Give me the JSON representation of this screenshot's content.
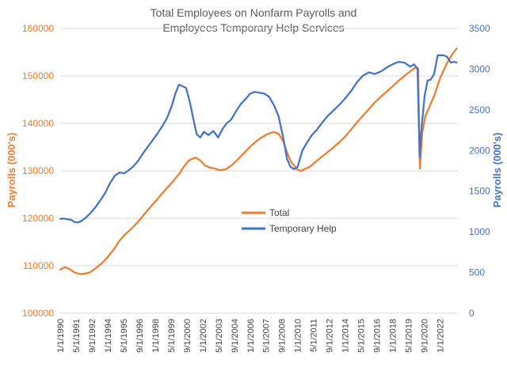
{
  "chart_data": {
    "type": "line",
    "title": "Total Employees on Nonfarm Payrolls and",
    "subtitle": "Employees Temporary  Help Services",
    "ylabel": "Payrolls (000's)",
    "y2label": "Payrolls (000's)",
    "ylim": [
      100000,
      160000
    ],
    "y2lim": [
      0,
      3500
    ],
    "yticks": [
      "100000",
      "110000",
      "120000",
      "130000",
      "140000",
      "150000",
      "160000"
    ],
    "y2ticks": [
      "0",
      "500",
      "1000",
      "1500",
      "2000",
      "2500",
      "3000",
      "3500"
    ],
    "xlim": [
      1990.0,
      2023.5
    ],
    "xticks": [
      {
        "label": "1/1/1990",
        "x": 1990.0
      },
      {
        "label": "5/1/1991",
        "x": 1991.333
      },
      {
        "label": "9/1/1992",
        "x": 1992.667
      },
      {
        "label": "1/1/1994",
        "x": 1994.0
      },
      {
        "label": "5/1/1995",
        "x": 1995.333
      },
      {
        "label": "9/1/1996",
        "x": 1996.667
      },
      {
        "label": "1/1/1998",
        "x": 1998.0
      },
      {
        "label": "5/1/1999",
        "x": 1999.333
      },
      {
        "label": "9/1/2000",
        "x": 2000.667
      },
      {
        "label": "1/1/2002",
        "x": 2002.0
      },
      {
        "label": "5/1/2003",
        "x": 2003.333
      },
      {
        "label": "9/1/2004",
        "x": 2004.667
      },
      {
        "label": "1/1/2006",
        "x": 2006.0
      },
      {
        "label": "5/1/2007",
        "x": 2007.333
      },
      {
        "label": "9/1/2008",
        "x": 2008.667
      },
      {
        "label": "1/1/2010",
        "x": 2010.0
      },
      {
        "label": "5/1/2011",
        "x": 2011.333
      },
      {
        "label": "9/1/2012",
        "x": 2012.667
      },
      {
        "label": "1/1/2014",
        "x": 2014.0
      },
      {
        "label": "5/1/2015",
        "x": 2015.333
      },
      {
        "label": "9/1/2016",
        "x": 2016.667
      },
      {
        "label": "1/1/2018",
        "x": 2018.0
      },
      {
        "label": "5/1/2019",
        "x": 2019.333
      },
      {
        "label": "9/1/2020",
        "x": 2020.667
      },
      {
        "label": "1/1/2022",
        "x": 2022.0
      }
    ],
    "legend_position": "center",
    "series": [
      {
        "name": "Total",
        "axis": "left",
        "color": "#ED7D31",
        "points": [
          [
            1990.0,
            109200
          ],
          [
            1990.4,
            109700
          ],
          [
            1990.8,
            109300
          ],
          [
            1991.2,
            108600
          ],
          [
            1991.6,
            108300
          ],
          [
            1992.0,
            108300
          ],
          [
            1992.5,
            108600
          ],
          [
            1993.0,
            109500
          ],
          [
            1993.5,
            110500
          ],
          [
            1994.0,
            111800
          ],
          [
            1994.5,
            113400
          ],
          [
            1995.0,
            115300
          ],
          [
            1995.5,
            116700
          ],
          [
            1996.0,
            117800
          ],
          [
            1996.5,
            119100
          ],
          [
            1997.0,
            120600
          ],
          [
            1997.5,
            122100
          ],
          [
            1998.0,
            123500
          ],
          [
            1998.5,
            125000
          ],
          [
            1999.0,
            126400
          ],
          [
            1999.5,
            127800
          ],
          [
            2000.0,
            129300
          ],
          [
            2000.4,
            130800
          ],
          [
            2000.8,
            132100
          ],
          [
            2001.0,
            132400
          ],
          [
            2001.4,
            132800
          ],
          [
            2001.8,
            132200
          ],
          [
            2002.2,
            131100
          ],
          [
            2002.6,
            130700
          ],
          [
            2003.0,
            130500
          ],
          [
            2003.5,
            130100
          ],
          [
            2004.0,
            130400
          ],
          [
            2004.5,
            131300
          ],
          [
            2005.0,
            132500
          ],
          [
            2005.5,
            133800
          ],
          [
            2006.0,
            135100
          ],
          [
            2006.5,
            136200
          ],
          [
            2007.0,
            137100
          ],
          [
            2007.5,
            137800
          ],
          [
            2008.0,
            138200
          ],
          [
            2008.4,
            137800
          ],
          [
            2008.8,
            136200
          ],
          [
            2009.1,
            134000
          ],
          [
            2009.4,
            132100
          ],
          [
            2009.8,
            130800
          ],
          [
            2010.0,
            130200
          ],
          [
            2010.3,
            130000
          ],
          [
            2010.6,
            130400
          ],
          [
            2011.0,
            130800
          ],
          [
            2011.5,
            131900
          ],
          [
            2012.0,
            132900
          ],
          [
            2012.5,
            133900
          ],
          [
            2013.0,
            134900
          ],
          [
            2013.5,
            136000
          ],
          [
            2014.0,
            137200
          ],
          [
            2014.5,
            138700
          ],
          [
            2015.0,
            140200
          ],
          [
            2015.5,
            141600
          ],
          [
            2016.0,
            143000
          ],
          [
            2016.5,
            144400
          ],
          [
            2017.0,
            145600
          ],
          [
            2017.5,
            146700
          ],
          [
            2018.0,
            147800
          ],
          [
            2018.5,
            149000
          ],
          [
            2019.0,
            150000
          ],
          [
            2019.5,
            151000
          ],
          [
            2020.0,
            151900
          ],
          [
            2020.15,
            151600
          ],
          [
            2020.3,
            130500
          ],
          [
            2020.5,
            138000
          ],
          [
            2020.75,
            141500
          ],
          [
            2021.0,
            142900
          ],
          [
            2021.5,
            145800
          ],
          [
            2022.0,
            149500
          ],
          [
            2022.5,
            152300
          ],
          [
            2023.0,
            154500
          ],
          [
            2023.4,
            155800
          ]
        ]
      },
      {
        "name": "Temporary Help",
        "axis": "right",
        "color": "#4472C4",
        "points": [
          [
            1990.0,
            1160
          ],
          [
            1990.3,
            1165
          ],
          [
            1990.6,
            1155
          ],
          [
            1990.9,
            1150
          ],
          [
            1991.2,
            1120
          ],
          [
            1991.5,
            1115
          ],
          [
            1991.8,
            1135
          ],
          [
            1992.2,
            1180
          ],
          [
            1992.6,
            1240
          ],
          [
            1993.0,
            1310
          ],
          [
            1993.4,
            1390
          ],
          [
            1993.8,
            1480
          ],
          [
            1994.2,
            1600
          ],
          [
            1994.6,
            1690
          ],
          [
            1995.0,
            1730
          ],
          [
            1995.4,
            1720
          ],
          [
            1995.8,
            1760
          ],
          [
            1996.2,
            1810
          ],
          [
            1996.6,
            1880
          ],
          [
            1997.0,
            1970
          ],
          [
            1997.4,
            2050
          ],
          [
            1997.8,
            2130
          ],
          [
            1998.2,
            2210
          ],
          [
            1998.6,
            2300
          ],
          [
            1999.0,
            2400
          ],
          [
            1999.4,
            2550
          ],
          [
            1999.7,
            2700
          ],
          [
            2000.0,
            2810
          ],
          [
            2000.3,
            2790
          ],
          [
            2000.6,
            2770
          ],
          [
            2000.9,
            2610
          ],
          [
            2001.2,
            2400
          ],
          [
            2001.5,
            2200
          ],
          [
            2001.8,
            2160
          ],
          [
            2002.1,
            2230
          ],
          [
            2002.5,
            2190
          ],
          [
            2002.9,
            2240
          ],
          [
            2003.3,
            2160
          ],
          [
            2003.7,
            2270
          ],
          [
            2004.0,
            2330
          ],
          [
            2004.4,
            2380
          ],
          [
            2004.8,
            2480
          ],
          [
            2005.2,
            2570
          ],
          [
            2005.6,
            2630
          ],
          [
            2006.0,
            2700
          ],
          [
            2006.4,
            2720
          ],
          [
            2006.8,
            2710
          ],
          [
            2007.2,
            2700
          ],
          [
            2007.6,
            2660
          ],
          [
            2008.0,
            2560
          ],
          [
            2008.4,
            2420
          ],
          [
            2008.8,
            2150
          ],
          [
            2009.1,
            1900
          ],
          [
            2009.4,
            1800
          ],
          [
            2009.7,
            1770
          ],
          [
            2010.0,
            1800
          ],
          [
            2010.4,
            2000
          ],
          [
            2010.8,
            2100
          ],
          [
            2011.2,
            2190
          ],
          [
            2011.6,
            2250
          ],
          [
            2012.0,
            2330
          ],
          [
            2012.5,
            2420
          ],
          [
            2013.0,
            2490
          ],
          [
            2013.5,
            2560
          ],
          [
            2014.0,
            2640
          ],
          [
            2014.5,
            2730
          ],
          [
            2015.0,
            2840
          ],
          [
            2015.5,
            2920
          ],
          [
            2016.0,
            2960
          ],
          [
            2016.5,
            2940
          ],
          [
            2017.0,
            2970
          ],
          [
            2017.5,
            3020
          ],
          [
            2018.0,
            3060
          ],
          [
            2018.5,
            3090
          ],
          [
            2019.0,
            3080
          ],
          [
            2019.5,
            3030
          ],
          [
            2019.8,
            3060
          ],
          [
            2020.1,
            3000
          ],
          [
            2020.2,
            2400
          ],
          [
            2020.28,
            1920
          ],
          [
            2020.45,
            2300
          ],
          [
            2020.7,
            2670
          ],
          [
            2020.95,
            2860
          ],
          [
            2021.2,
            2870
          ],
          [
            2021.5,
            2940
          ],
          [
            2021.8,
            3170
          ],
          [
            2022.0,
            3170
          ],
          [
            2022.3,
            3170
          ],
          [
            2022.6,
            3150
          ],
          [
            2022.9,
            3080
          ],
          [
            2023.2,
            3090
          ],
          [
            2023.4,
            3080
          ]
        ]
      }
    ]
  }
}
